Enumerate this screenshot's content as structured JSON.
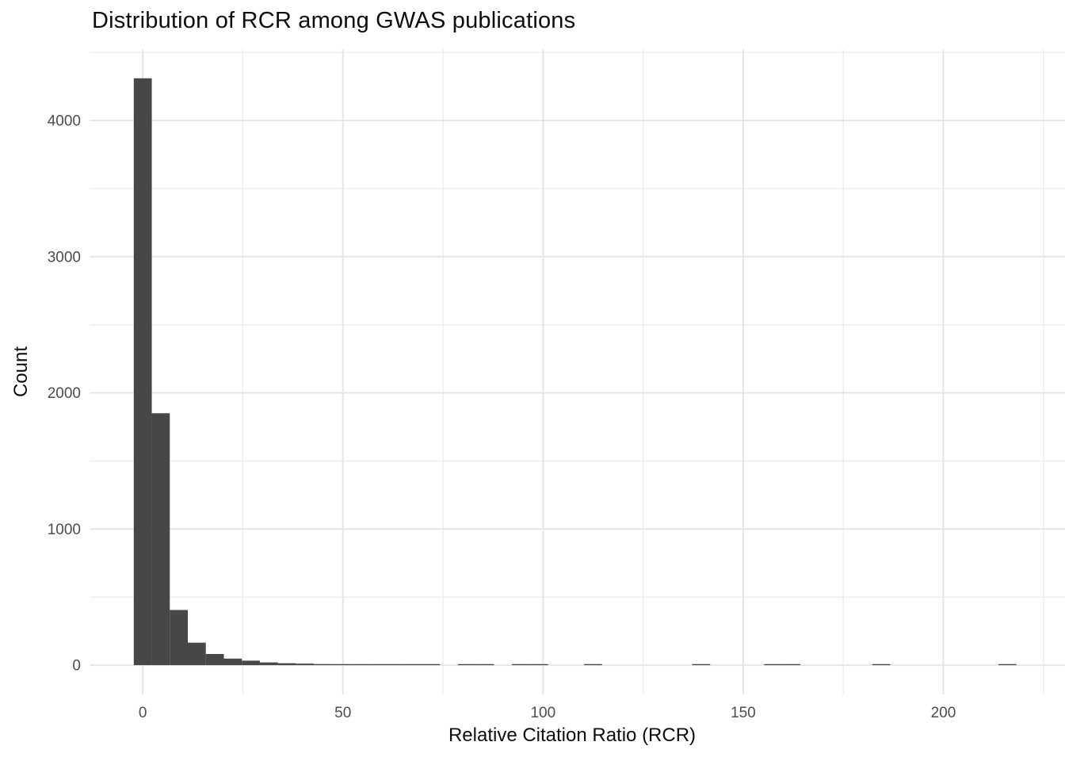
{
  "chart_data": {
    "type": "bar",
    "subtype": "histogram",
    "title": "Distribution of RCR among GWAS publications",
    "xlabel": "Relative Citation Ratio (RCR)",
    "ylabel": "Count",
    "bin_width": 4.5,
    "bins": {
      "centers": [
        0,
        4.5,
        9,
        13.5,
        18,
        22.5,
        27,
        31.5,
        36,
        40.5,
        45,
        49.5,
        54,
        58.5,
        63,
        67.5,
        72,
        81,
        85.5,
        94.5,
        99,
        112.5,
        139.5,
        157.5,
        162,
        184.5,
        216
      ],
      "counts": [
        4310,
        1850,
        405,
        165,
        82,
        48,
        33,
        20,
        14,
        11,
        8,
        6,
        5,
        4,
        4,
        3,
        2,
        1,
        1,
        1,
        1,
        1,
        1,
        1,
        1,
        1,
        1
      ]
    },
    "x_ticks_major": [
      0,
      50,
      100,
      150,
      200
    ],
    "x_ticks_minor": [
      25,
      75,
      125,
      175,
      225
    ],
    "y_ticks_major": [
      0,
      1000,
      2000,
      3000,
      4000
    ],
    "y_ticks_minor": [
      500,
      1500,
      2500,
      3500,
      4500
    ],
    "xlim": [
      -13.2,
      230.4
    ],
    "ylim": [
      -215,
      4524
    ],
    "grid": "major+minor",
    "legend": "none",
    "colors": {
      "bar_fill": "#474747",
      "grid_major": "#e6e6e6",
      "grid_minor": "#ececec",
      "tick_label": "#4d4d4d",
      "text": "#0d0d0d",
      "background": "#ffffff"
    }
  }
}
